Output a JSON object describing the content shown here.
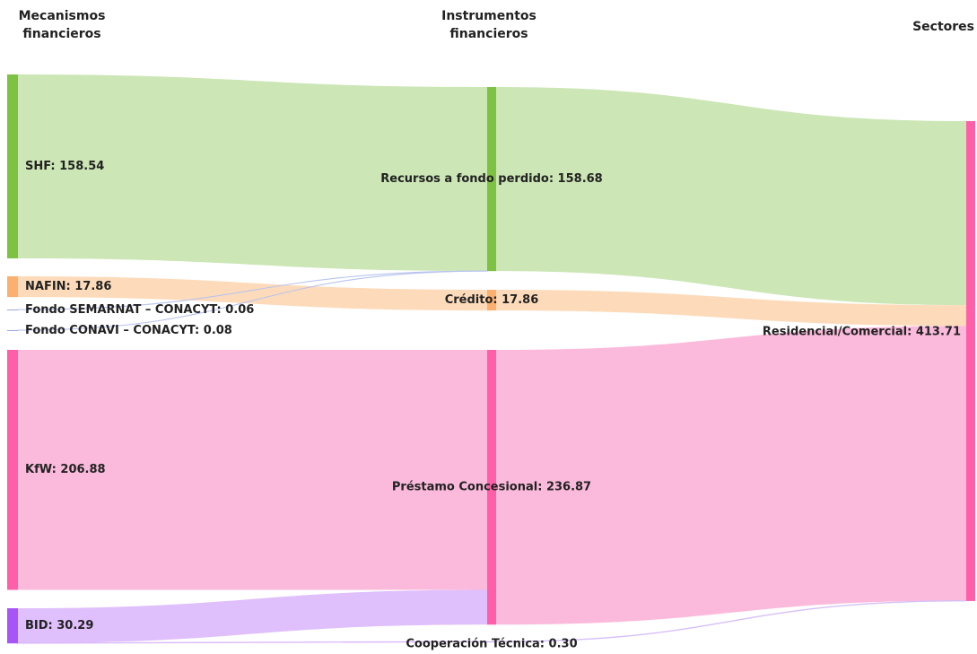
{
  "chart_data": {
    "type": "sankey",
    "columns": [
      "Mecanismos financieros",
      "Instrumentos financieros",
      "Sectores"
    ],
    "nodes": [
      {
        "label": "SHF: 158.54",
        "value": 158.54,
        "column": 0,
        "color": "#7dc242",
        "link_color": "#c6e3ad"
      },
      {
        "label": "NAFIN: 17.86",
        "value": 17.86,
        "column": 0,
        "color": "#fbb06f",
        "link_color": "#fdd7b3"
      },
      {
        "label": "Fondo SEMARNAT – CONACYT: 0.06",
        "value": 0.06,
        "column": 0,
        "color": "#9aa8e0",
        "link_color": "#b8c3ee"
      },
      {
        "label": "Fondo CONAVI – CONACYT: 0.08",
        "value": 0.08,
        "column": 0,
        "color": "#9aa8e0",
        "link_color": "#b8c3ee"
      },
      {
        "label": "KfW: 206.88",
        "value": 206.88,
        "column": 0,
        "color": "#ff5fa8",
        "link_color": "#fbb3d8"
      },
      {
        "label": "BID: 30.29",
        "value": 30.29,
        "column": 0,
        "color": "#a855f7",
        "link_color": "#dcb8fc"
      },
      {
        "label": "Recursos a fondo perdido: 158.68",
        "value": 158.68,
        "column": 1,
        "color": "#7dc242",
        "link_color": "#c6e3ad"
      },
      {
        "label": "Crédito: 17.86",
        "value": 17.86,
        "column": 1,
        "color": "#fbb06f",
        "link_color": "#fdd7b3"
      },
      {
        "label": "Préstamo Concesional: 236.87",
        "value": 236.87,
        "column": 1,
        "color": "#ff5fa8",
        "link_color": "#fbb3d8"
      },
      {
        "label": "Cooperación Técnica: 0.30",
        "value": 0.3,
        "column": 1,
        "color": "#c9a3f5",
        "link_color": "#d6bff7"
      },
      {
        "label": "Residencial/Comercial: 413.71",
        "value": 413.71,
        "column": 2,
        "color": "#ff5fa8",
        "link_color": "#fbb3d8"
      }
    ],
    "links": [
      {
        "source": 0,
        "target": 6,
        "value": 158.54
      },
      {
        "source": 1,
        "target": 7,
        "value": 17.86
      },
      {
        "source": 2,
        "target": 6,
        "value": 0.06
      },
      {
        "source": 3,
        "target": 6,
        "value": 0.08
      },
      {
        "source": 4,
        "target": 8,
        "value": 206.88
      },
      {
        "source": 5,
        "target": 8,
        "value": 29.99
      },
      {
        "source": 5,
        "target": 9,
        "value": 0.3
      },
      {
        "source": 6,
        "target": 10,
        "value": 158.68
      },
      {
        "source": 7,
        "target": 10,
        "value": 17.86
      },
      {
        "source": 8,
        "target": 10,
        "value": 236.87
      },
      {
        "source": 9,
        "target": 10,
        "value": 0.3
      }
    ]
  }
}
